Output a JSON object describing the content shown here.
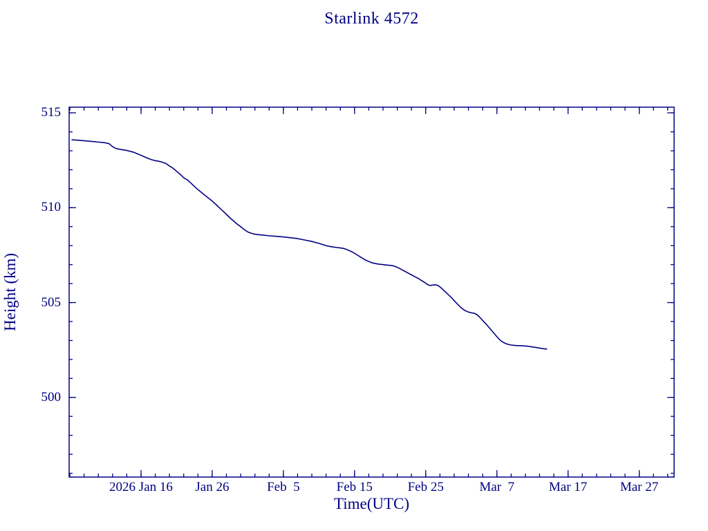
{
  "chart": {
    "title": "Starlink 4572",
    "xlabel": "Time(UTC)",
    "ylabel": "Height (km)"
  },
  "chart_data": {
    "type": "line",
    "title": "Starlink 4572",
    "xlabel": "Time(UTC)",
    "ylabel": "Height (km)",
    "x_unit": "day of year 2026 (Jan 1 = 1)",
    "xlim": [
      5.9,
      90.9
    ],
    "ylim": [
      495.8,
      515.3
    ],
    "grid": false,
    "legend": "none",
    "axis_color": "#000080",
    "line_color": "#000080",
    "x_ticks": [
      {
        "value": 16,
        "label": "2026 Jan 16"
      },
      {
        "value": 26,
        "label": "Jan 26"
      },
      {
        "value": 36,
        "label": "Feb  5"
      },
      {
        "value": 46,
        "label": "Feb 15"
      },
      {
        "value": 56,
        "label": "Feb 25"
      },
      {
        "value": 66,
        "label": "Mar  7"
      },
      {
        "value": 76,
        "label": "Mar 17"
      },
      {
        "value": 86,
        "label": "Mar 27"
      }
    ],
    "x_minor_step": 2,
    "y_ticks": [
      {
        "value": 500,
        "label": "500"
      },
      {
        "value": 505,
        "label": "505"
      },
      {
        "value": 510,
        "label": "510"
      },
      {
        "value": 515,
        "label": "515"
      }
    ],
    "y_minor_step": 1,
    "series": [
      {
        "name": "height",
        "x": [
          6.3,
          7,
          8,
          9,
          10,
          11,
          11.5,
          12,
          12.5,
          13,
          14,
          15,
          15.5,
          16,
          16.5,
          17,
          17.5,
          18,
          18.5,
          19,
          19.5,
          20,
          20.5,
          21,
          21.5,
          22,
          22.5,
          23,
          23.5,
          24,
          24.5,
          25,
          25.5,
          26,
          26.5,
          27,
          27.5,
          28,
          28.5,
          29,
          29.5,
          30,
          30.5,
          31,
          31.5,
          32,
          33,
          34,
          35,
          36,
          37,
          38,
          39,
          40,
          41,
          41.5,
          42,
          42.5,
          43,
          43.5,
          44,
          44.5,
          45,
          45.5,
          46,
          46.5,
          47,
          47.5,
          48,
          48.5,
          49,
          49.5,
          50,
          50.5,
          51,
          51.5,
          52,
          52.5,
          53,
          53.5,
          54,
          54.5,
          55,
          55.5,
          56,
          56.3,
          56.6,
          57,
          57.4,
          57.8,
          58.2,
          58.6,
          59,
          59.5,
          60,
          60.5,
          61,
          61.5,
          62,
          62.4,
          62.8,
          63.2,
          63.6,
          64,
          64.5,
          65,
          65.5,
          66,
          66.5,
          67,
          67.5,
          68,
          68.5,
          69,
          69.5,
          70,
          70.5,
          71,
          71.5,
          72,
          72.5,
          73
        ],
        "y": [
          513.58,
          513.56,
          513.53,
          513.5,
          513.46,
          513.42,
          513.38,
          513.22,
          513.12,
          513.08,
          513.02,
          512.92,
          512.84,
          512.76,
          512.68,
          512.6,
          512.53,
          512.48,
          512.45,
          512.4,
          512.33,
          512.2,
          512.08,
          511.92,
          511.76,
          511.58,
          511.47,
          511.3,
          511.12,
          510.95,
          510.8,
          510.65,
          510.5,
          510.35,
          510.18,
          510.0,
          509.82,
          509.65,
          509.47,
          509.3,
          509.14,
          509.0,
          508.85,
          508.72,
          508.65,
          508.6,
          508.56,
          508.52,
          508.49,
          508.46,
          508.42,
          508.37,
          508.3,
          508.22,
          508.12,
          508.06,
          508.0,
          507.96,
          507.93,
          507.9,
          507.88,
          507.85,
          507.78,
          507.7,
          507.6,
          507.48,
          507.36,
          507.25,
          507.16,
          507.09,
          507.05,
          507.02,
          507.0,
          506.98,
          506.96,
          506.93,
          506.86,
          506.76,
          506.66,
          506.56,
          506.46,
          506.36,
          506.26,
          506.14,
          506.02,
          505.94,
          505.9,
          505.92,
          505.94,
          505.88,
          505.76,
          505.62,
          505.48,
          505.3,
          505.1,
          504.9,
          504.72,
          504.58,
          504.5,
          504.46,
          504.44,
          504.36,
          504.22,
          504.06,
          503.86,
          503.64,
          503.42,
          503.2,
          503.0,
          502.88,
          502.8,
          502.76,
          502.74,
          502.73,
          502.72,
          502.71,
          502.69,
          502.66,
          502.63,
          502.6,
          502.57,
          502.55
        ]
      }
    ]
  }
}
